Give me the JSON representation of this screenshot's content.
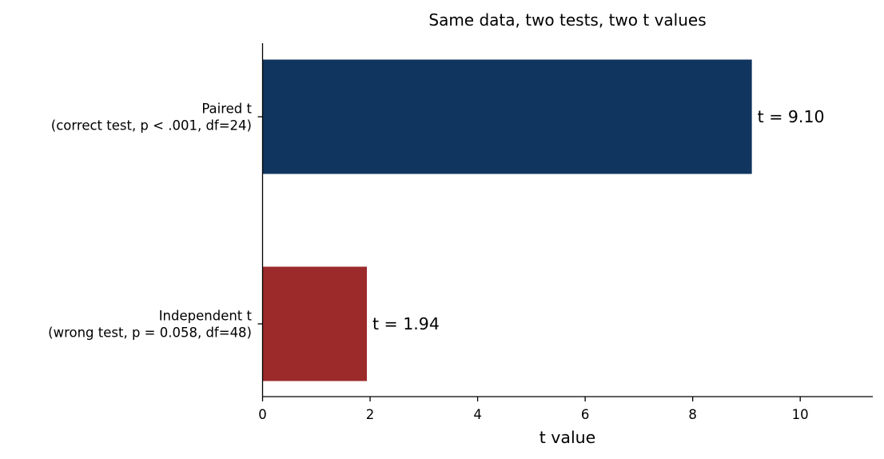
{
  "chart_data": {
    "type": "bar",
    "orientation": "horizontal",
    "title": "Same data, two tests, two t values",
    "xlabel": "t value",
    "ylabel": "",
    "xlim": [
      0,
      11.35
    ],
    "xticks": [
      0,
      2,
      4,
      6,
      8,
      10
    ],
    "grid": false,
    "legend": "none",
    "categories": [
      [
        "Paired t",
        "(correct test, p < .001, df=24)"
      ],
      [
        "Independent t",
        "(wrong test, p = 0.058, df=48)"
      ]
    ],
    "values": [
      9.1,
      1.94
    ],
    "data_labels": [
      "t = 9.10",
      "t = 1.94"
    ],
    "colors": [
      "#10355f",
      "#9c2a2b"
    ]
  }
}
